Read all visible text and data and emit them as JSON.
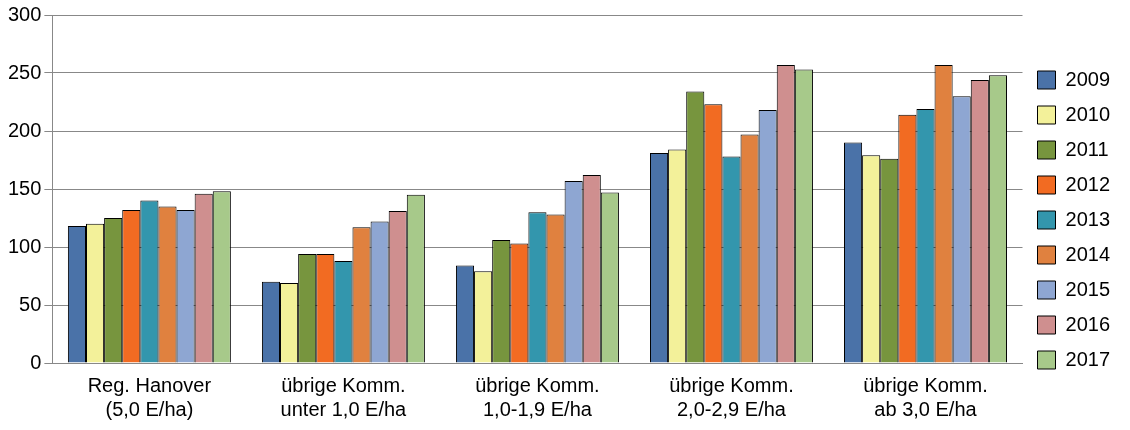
{
  "chart_data": {
    "type": "bar",
    "categories": [
      "Reg. Hanover\n(5,0 E/ha)",
      "übrige Komm.\nunter 1,0 E/ha",
      "übrige Komm.\n1,0-1,9 E/ha",
      "übrige Komm.\n2,0-2,9 E/ha",
      "übrige Komm.\nab 3,0 E/ha"
    ],
    "series": [
      {
        "name": "2009",
        "color": "#4a72a8",
        "values": [
          118,
          70,
          84,
          181,
          190
        ]
      },
      {
        "name": "2010",
        "color": "#f3f19a",
        "values": [
          120,
          69,
          79,
          184,
          179
        ]
      },
      {
        "name": "2011",
        "color": "#77953e",
        "values": [
          125,
          94,
          106,
          234,
          176
        ]
      },
      {
        "name": "2012",
        "color": "#f26b22",
        "values": [
          132,
          94,
          103,
          223,
          214
        ]
      },
      {
        "name": "2013",
        "color": "#3396ad",
        "values": [
          140,
          88,
          130,
          178,
          219
        ]
      },
      {
        "name": "2014",
        "color": "#e0813f",
        "values": [
          135,
          117,
          128,
          197,
          257
        ]
      },
      {
        "name": "2015",
        "color": "#8ea6d2",
        "values": [
          132,
          122,
          157,
          218,
          230
        ]
      },
      {
        "name": "2016",
        "color": "#cf8f8f",
        "values": [
          146,
          131,
          162,
          257,
          244
        ]
      },
      {
        "name": "2017",
        "color": "#a7c98a",
        "values": [
          148,
          145,
          147,
          253,
          248
        ]
      }
    ],
    "ylim": [
      0,
      300
    ],
    "yticks": [
      0,
      50,
      100,
      150,
      200,
      250,
      300
    ],
    "grid": "y",
    "legend": "right"
  }
}
